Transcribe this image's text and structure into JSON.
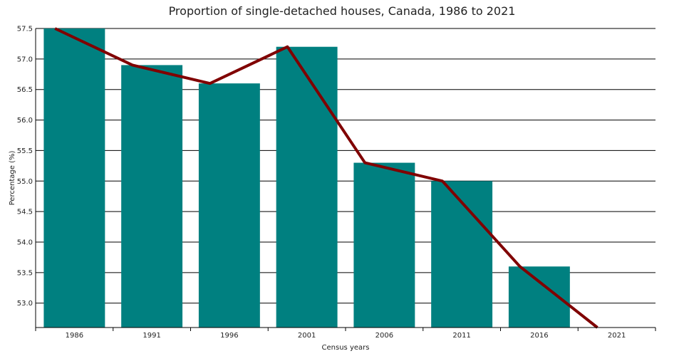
{
  "chart_data": {
    "type": "bar",
    "title": "Proportion of single-detached houses, Canada, 1986 to 2021",
    "xlabel": "Census years",
    "ylabel": "Percentage (%)",
    "categories": [
      "1986",
      "1991",
      "1996",
      "2001",
      "2006",
      "2011",
      "2016",
      "2021"
    ],
    "series": [
      {
        "type": "bar",
        "values": [
          57.5,
          56.9,
          56.6,
          57.2,
          55.3,
          55.0,
          53.6,
          52.6
        ]
      },
      {
        "type": "line",
        "values": [
          57.5,
          56.9,
          56.6,
          57.2,
          55.3,
          55.0,
          53.6,
          52.6
        ]
      }
    ],
    "ylim": [
      52.6,
      57.5
    ],
    "yticks": [
      "57.5",
      "57.0",
      "56.5",
      "56.0",
      "55.5",
      "55.0",
      "54.5",
      "54.0",
      "53.5",
      "53.0"
    ],
    "grid": true,
    "colors": {
      "bar": "#008080",
      "line": "#800000",
      "grid": "#000000"
    }
  }
}
